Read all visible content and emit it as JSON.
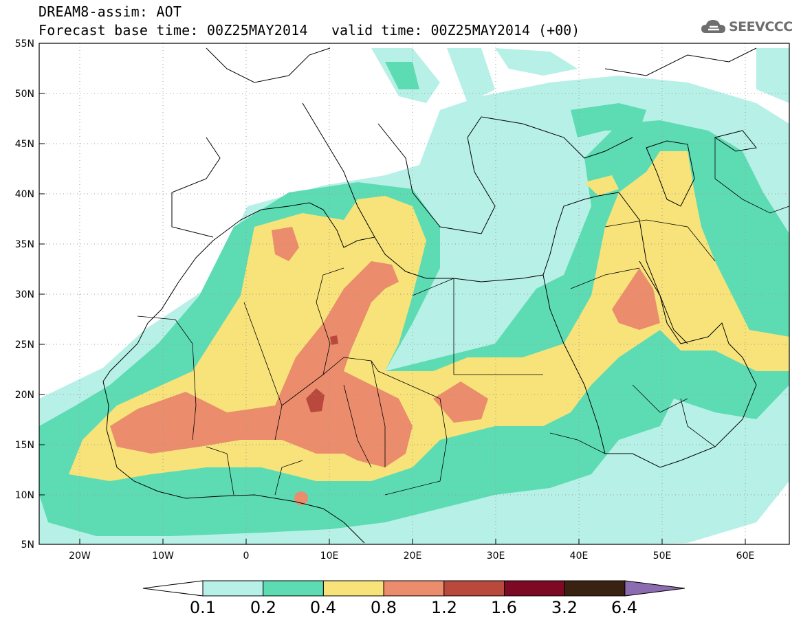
{
  "header": {
    "title": "DREAM8-assim: AOT",
    "base_time": "Forecast base time: 00Z25MAY2014",
    "valid_time": "valid time: 00Z25MAY2014 (+00)"
  },
  "logo": {
    "text": "SEEVCCC",
    "icon": "cloud-icon"
  },
  "map": {
    "lon_range": [
      -25,
      65
    ],
    "lat_range": [
      5,
      55
    ],
    "lat_labels": [
      "55N",
      "50N",
      "45N",
      "40N",
      "35N",
      "30N",
      "25N",
      "20N",
      "15N",
      "10N",
      "5N"
    ],
    "lon_labels": [
      "20W",
      "10W",
      "0",
      "10E",
      "20E",
      "30E",
      "40E",
      "50E",
      "60E"
    ]
  },
  "legend": {
    "colors": [
      "#ffffff",
      "#b7f0e6",
      "#5ddcb4",
      "#f7e37a",
      "#eb8c6c",
      "#b8493c",
      "#7d0a24",
      "#3a2212",
      "#8c6cb0"
    ],
    "labels": [
      "0.1",
      "0.2",
      "0.4",
      "0.8",
      "1.2",
      "1.6",
      "3.2",
      "6.4"
    ]
  }
}
